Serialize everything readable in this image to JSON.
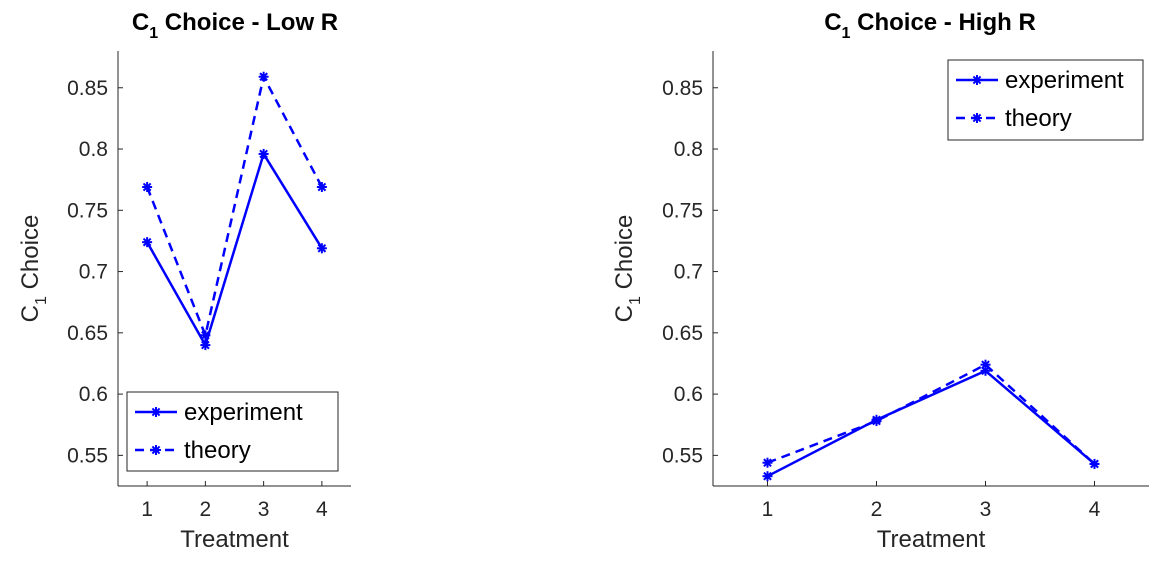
{
  "chart_data": [
    {
      "type": "line",
      "title_main": "C",
      "title_sub": "1",
      "title_rest": " Choice - Low R",
      "xlabel": "Treatment",
      "ylabel_main": "C",
      "ylabel_sub": "1",
      "ylabel_rest": "  Choice",
      "x": [
        1,
        2,
        3,
        4
      ],
      "xlim": [
        0.5,
        4.5
      ],
      "ylim": [
        0.525,
        0.88
      ],
      "yticks": [
        "0.55",
        "0.6",
        "0.65",
        "0.7",
        "0.75",
        "0.8",
        "0.85"
      ],
      "xticks": [
        "1",
        "2",
        "3",
        "4"
      ],
      "grid": false,
      "legend_position": "bottom-left",
      "series": [
        {
          "name": "experiment",
          "style": "solid",
          "values": [
            0.724,
            0.64,
            0.796,
            0.719
          ]
        },
        {
          "name": "theory",
          "style": "dashed",
          "values": [
            0.769,
            0.648,
            0.859,
            0.769
          ]
        }
      ]
    },
    {
      "type": "line",
      "title_main": "C",
      "title_sub": "1",
      "title_rest": " Choice - High R",
      "xlabel": "Treatment",
      "ylabel_main": "C",
      "ylabel_sub": "1",
      "ylabel_rest": "  Choice",
      "x": [
        1,
        2,
        3,
        4
      ],
      "xlim": [
        0.5,
        4.5
      ],
      "ylim": [
        0.525,
        0.88
      ],
      "yticks": [
        "0.55",
        "0.6",
        "0.65",
        "0.7",
        "0.75",
        "0.8",
        "0.85"
      ],
      "xticks": [
        "1",
        "2",
        "3",
        "4"
      ],
      "grid": false,
      "legend_position": "top-right",
      "series": [
        {
          "name": "experiment",
          "style": "solid",
          "values": [
            0.533,
            0.579,
            0.619,
            0.543
          ]
        },
        {
          "name": "theory",
          "style": "dashed",
          "values": [
            0.544,
            0.578,
            0.624,
            0.543
          ]
        }
      ]
    }
  ],
  "colors": {
    "line": "#0000ff",
    "axis": "#262626"
  }
}
